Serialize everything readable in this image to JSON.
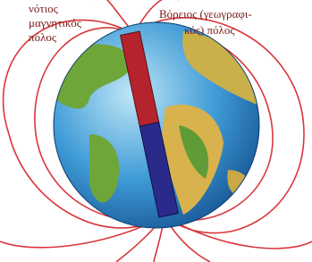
{
  "labels": {
    "south_magnetic_pole": [
      "νότιος",
      "μαγνητικός",
      "πόλος"
    ],
    "north_geographic_pole": [
      "Βόρειος (γεωγραφι-",
      "κός) πόλος"
    ]
  }
}
